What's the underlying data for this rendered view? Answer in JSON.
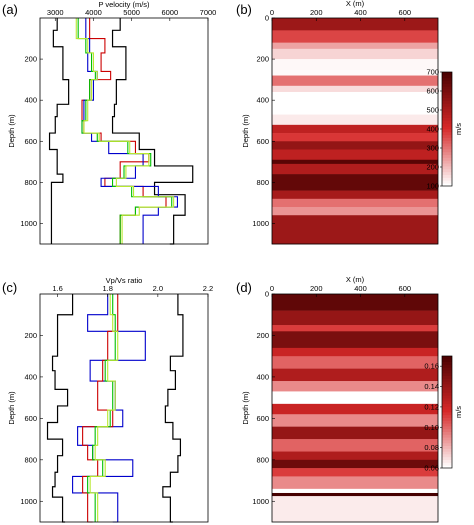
{
  "chart_data": [
    {
      "panel": "(a)",
      "type": "line",
      "xlabel": "P velocity (m/s)",
      "ylabel": "Depth (m)",
      "xlim": [
        2600,
        7000
      ],
      "ylim": [
        0,
        1100
      ],
      "x_ticks": [
        3000,
        4000,
        5000,
        6000,
        7000
      ],
      "y_ticks": [
        200,
        400,
        600,
        800,
        1000
      ],
      "y_inverted": true,
      "series": [
        {
          "color": "#000000",
          "depth": [
            0,
            60,
            140,
            300,
            420,
            480,
            560,
            640,
            760,
            800,
            860,
            960,
            1100
          ],
          "values": [
            3050,
            2950,
            3200,
            3350,
            3050,
            3000,
            2850,
            3050,
            3200,
            2900,
            2900,
            2900,
            2900
          ]
        },
        {
          "color": "#000000",
          "depth": [
            0,
            60,
            140,
            300,
            420,
            480,
            560,
            640,
            720,
            760,
            800,
            860,
            960,
            1100
          ],
          "values": [
            4700,
            4500,
            4850,
            4600,
            4550,
            4500,
            5200,
            5600,
            6600,
            6600,
            5600,
            6400,
            6100,
            6000
          ]
        },
        {
          "color": "#cc0000",
          "depth": [
            0,
            100,
            170,
            260,
            300,
            400,
            500,
            560,
            600,
            660,
            700,
            780,
            820,
            870,
            920,
            960,
            1100
          ],
          "values": [
            3900,
            4300,
            4200,
            4450,
            3900,
            3700,
            3750,
            4200,
            5100,
            5450,
            4700,
            4300,
            5300,
            5900,
            5100,
            4700,
            4700
          ]
        },
        {
          "color": "#0000cc",
          "depth": [
            0,
            100,
            170,
            260,
            300,
            400,
            500,
            560,
            600,
            660,
            720,
            780,
            820,
            870,
            920,
            960,
            1100
          ],
          "values": [
            3800,
            3900,
            3850,
            4100,
            4000,
            3750,
            3700,
            3950,
            4400,
            5300,
            5100,
            4200,
            5700,
            6200,
            5700,
            5300,
            5300
          ]
        },
        {
          "color": "#00c000",
          "depth": [
            0,
            100,
            170,
            260,
            300,
            400,
            500,
            560,
            600,
            660,
            720,
            780,
            820,
            870,
            920,
            960,
            1100
          ],
          "values": [
            3600,
            3800,
            3950,
            4050,
            3900,
            3800,
            3700,
            4100,
            4900,
            5500,
            4800,
            4500,
            5000,
            6050,
            5100,
            4700,
            4700
          ]
        },
        {
          "color": "#b8e830",
          "depth": [
            0,
            100,
            170,
            260,
            300,
            400,
            500,
            560,
            600,
            660,
            720,
            780,
            820,
            870,
            920,
            960,
            1100
          ],
          "values": [
            3550,
            3850,
            4000,
            4100,
            3950,
            3850,
            3750,
            4150,
            4950,
            5450,
            4850,
            4600,
            5050,
            6100,
            5200,
            4750,
            4750
          ]
        }
      ]
    },
    {
      "panel": "(b)",
      "type": "heatmap",
      "xlabel": "X (m)",
      "ylabel": "Depth (m)",
      "xlim": [
        0,
        750
      ],
      "ylim": [
        0,
        1100
      ],
      "x_ticks": [
        0,
        200,
        400,
        600
      ],
      "y_ticks": [
        0,
        200,
        400,
        600,
        800,
        1000
      ],
      "colorbar": {
        "label": "m/s",
        "ticks": [
          100,
          200,
          300,
          400,
          500,
          600,
          700
        ],
        "range": [
          100,
          700
        ]
      },
      "layers": [
        {
          "top": 0,
          "bottom": 60,
          "value": 520
        },
        {
          "top": 60,
          "bottom": 120,
          "value": 360
        },
        {
          "top": 120,
          "bottom": 150,
          "value": 230
        },
        {
          "top": 150,
          "bottom": 200,
          "value": 160
        },
        {
          "top": 200,
          "bottom": 280,
          "value": 110
        },
        {
          "top": 280,
          "bottom": 330,
          "value": 300
        },
        {
          "top": 330,
          "bottom": 360,
          "value": 150
        },
        {
          "top": 360,
          "bottom": 470,
          "value": 100
        },
        {
          "top": 470,
          "bottom": 520,
          "value": 130
        },
        {
          "top": 520,
          "bottom": 560,
          "value": 450
        },
        {
          "top": 560,
          "bottom": 600,
          "value": 380
        },
        {
          "top": 600,
          "bottom": 640,
          "value": 540
        },
        {
          "top": 640,
          "bottom": 690,
          "value": 450
        },
        {
          "top": 690,
          "bottom": 710,
          "value": 660
        },
        {
          "top": 710,
          "bottom": 760,
          "value": 480
        },
        {
          "top": 760,
          "bottom": 840,
          "value": 640
        },
        {
          "top": 840,
          "bottom": 880,
          "value": 500
        },
        {
          "top": 880,
          "bottom": 920,
          "value": 300
        },
        {
          "top": 920,
          "bottom": 960,
          "value": 250
        },
        {
          "top": 960,
          "bottom": 1100,
          "value": 520
        }
      ]
    },
    {
      "panel": "(c)",
      "type": "line",
      "xlabel": "Vp/Vs ratio",
      "ylabel": "Depth (m)",
      "xlim": [
        1.53,
        2.2
      ],
      "ylim": [
        0,
        1100
      ],
      "x_ticks": [
        1.6,
        1.8,
        2.0,
        2.2
      ],
      "x_tick_labels": [
        "1.6",
        "1.8",
        "2.0",
        "2.2"
      ],
      "y_ticks": [
        200,
        400,
        600,
        800,
        1000
      ],
      "y_inverted": true,
      "series": [
        {
          "color": "#000000",
          "depth": [
            0,
            100,
            300,
            370,
            460,
            540,
            620,
            700,
            780,
            860,
            930,
            980,
            1100
          ],
          "values": [
            1.66,
            1.6,
            1.58,
            1.59,
            1.64,
            1.6,
            1.56,
            1.62,
            1.6,
            1.59,
            1.58,
            1.62,
            1.63
          ]
        },
        {
          "color": "#000000",
          "depth": [
            0,
            100,
            300,
            370,
            460,
            540,
            620,
            700,
            780,
            860,
            930,
            980,
            1100
          ],
          "values": [
            2.08,
            2.1,
            2.05,
            2.07,
            2.04,
            2.03,
            2.06,
            2.09,
            2.08,
            2.05,
            2.02,
            2.05,
            2.06
          ]
        },
        {
          "color": "#0000cc",
          "depth": [
            0,
            100,
            180,
            320,
            420,
            560,
            640,
            730,
            800,
            880,
            960,
            1100
          ],
          "values": [
            1.8,
            1.72,
            1.95,
            1.73,
            1.83,
            1.86,
            1.68,
            1.74,
            1.9,
            1.66,
            1.84,
            1.82
          ]
        },
        {
          "color": "#cc0000",
          "depth": [
            0,
            100,
            180,
            320,
            420,
            560,
            640,
            730,
            800,
            880,
            960,
            1100
          ],
          "values": [
            1.84,
            1.84,
            1.8,
            1.78,
            1.76,
            1.82,
            1.7,
            1.72,
            1.76,
            1.7,
            1.72,
            1.74
          ]
        },
        {
          "color": "#00c000",
          "depth": [
            0,
            100,
            180,
            320,
            420,
            560,
            640,
            730,
            800,
            880,
            960,
            1100
          ],
          "values": [
            1.82,
            1.83,
            1.83,
            1.79,
            1.82,
            1.81,
            1.75,
            1.74,
            1.78,
            1.72,
            1.75,
            1.75
          ]
        },
        {
          "color": "#b8e830",
          "depth": [
            0,
            100,
            180,
            320,
            420,
            560,
            640,
            730,
            800,
            880,
            960,
            1100
          ],
          "values": [
            1.81,
            1.82,
            1.84,
            1.8,
            1.83,
            1.8,
            1.76,
            1.75,
            1.79,
            1.73,
            1.76,
            1.76
          ]
        }
      ]
    },
    {
      "panel": "(d)",
      "type": "heatmap",
      "xlabel": "X (m)",
      "ylabel": "Depth (m)",
      "xlim": [
        0,
        750
      ],
      "ylim": [
        0,
        1100
      ],
      "x_ticks": [
        0,
        200,
        400,
        600
      ],
      "y_ticks": [
        0,
        200,
        400,
        600,
        800,
        1000
      ],
      "colorbar": {
        "label": "m/s",
        "ticks": [
          0.06,
          0.08,
          0.1,
          0.12,
          0.14,
          0.16
        ],
        "tick_labels": [
          "0.06",
          "0.08",
          "0.10",
          "0.12",
          "0.14",
          "0.16"
        ],
        "range": [
          0.06,
          0.17
        ]
      },
      "layers": [
        {
          "top": 0,
          "bottom": 80,
          "value": 0.16
        },
        {
          "top": 80,
          "bottom": 150,
          "value": 0.14
        },
        {
          "top": 150,
          "bottom": 180,
          "value": 0.11
        },
        {
          "top": 180,
          "bottom": 260,
          "value": 0.15
        },
        {
          "top": 260,
          "bottom": 300,
          "value": 0.12
        },
        {
          "top": 300,
          "bottom": 360,
          "value": 0.1
        },
        {
          "top": 360,
          "bottom": 420,
          "value": 0.13
        },
        {
          "top": 420,
          "bottom": 470,
          "value": 0.09
        },
        {
          "top": 470,
          "bottom": 530,
          "value": 0.06
        },
        {
          "top": 530,
          "bottom": 580,
          "value": 0.12
        },
        {
          "top": 580,
          "bottom": 640,
          "value": 0.09
        },
        {
          "top": 640,
          "bottom": 700,
          "value": 0.14
        },
        {
          "top": 700,
          "bottom": 760,
          "value": 0.1
        },
        {
          "top": 760,
          "bottom": 800,
          "value": 0.13
        },
        {
          "top": 800,
          "bottom": 840,
          "value": 0.155
        },
        {
          "top": 840,
          "bottom": 880,
          "value": 0.11
        },
        {
          "top": 880,
          "bottom": 940,
          "value": 0.09
        },
        {
          "top": 940,
          "bottom": 960,
          "value": 0.06
        },
        {
          "top": 960,
          "bottom": 975,
          "value": 0.17
        },
        {
          "top": 975,
          "bottom": 1100,
          "value": 0.065
        }
      ]
    }
  ]
}
